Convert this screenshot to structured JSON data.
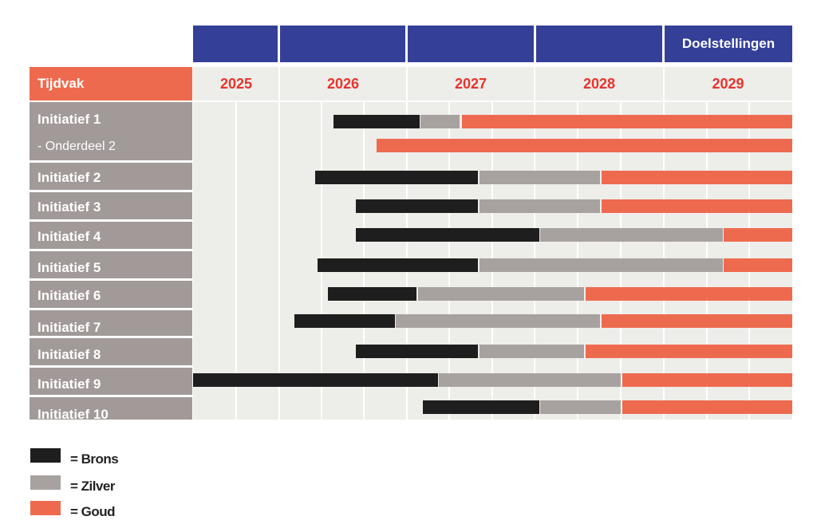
{
  "chart_data": {
    "type": "gantt",
    "header_title": "Doelstellingen",
    "period_label": "Tijdvak",
    "years": [
      "2025",
      "2026",
      "2027",
      "2028",
      "2029"
    ],
    "x_range": [
      2025.0,
      2029.9
    ],
    "colors": {
      "brons": "#1e1e1e",
      "zilver": "#a7a2a0",
      "goud": "#ee6a4e",
      "header_blue": "#343f98"
    },
    "legend": [
      {
        "key": "brons",
        "label": "= Brons"
      },
      {
        "key": "zilver",
        "label": "= Zilver"
      },
      {
        "key": "goud",
        "label": "= Goud"
      }
    ],
    "rows": [
      {
        "label": "Initiatief  1",
        "sublabel": "- Onderdeel 2",
        "segments": [
          {
            "level": "brons",
            "start": 2026.15,
            "end": 2026.85
          },
          {
            "level": "zilver",
            "start": 2026.86,
            "end": 2027.18
          },
          {
            "level": "goud",
            "start": 2027.2,
            "end": 2029.9
          }
        ],
        "sub_segments": [
          {
            "level": "goud",
            "start": 2026.5,
            "end": 2029.9
          }
        ]
      },
      {
        "label": "Initiatief  2",
        "segments": [
          {
            "level": "brons",
            "start": 2026.0,
            "end": 2027.33
          },
          {
            "level": "zilver",
            "start": 2027.34,
            "end": 2028.33
          },
          {
            "level": "goud",
            "start": 2028.34,
            "end": 2029.9
          }
        ]
      },
      {
        "label": "Initiatief  3",
        "segments": [
          {
            "level": "brons",
            "start": 2026.33,
            "end": 2027.33
          },
          {
            "level": "zilver",
            "start": 2027.34,
            "end": 2028.33
          },
          {
            "level": "goud",
            "start": 2028.34,
            "end": 2029.9
          }
        ]
      },
      {
        "label": "Initiatief  4",
        "segments": [
          {
            "level": "brons",
            "start": 2026.33,
            "end": 2027.83
          },
          {
            "level": "zilver",
            "start": 2027.84,
            "end": 2029.33
          },
          {
            "level": "goud",
            "start": 2029.34,
            "end": 2029.9
          }
        ]
      },
      {
        "label": "Initiatief  5",
        "segments": [
          {
            "level": "brons",
            "start": 2026.02,
            "end": 2027.33
          },
          {
            "level": "zilver",
            "start": 2027.34,
            "end": 2029.33
          },
          {
            "level": "goud",
            "start": 2029.34,
            "end": 2029.9
          }
        ]
      },
      {
        "label": "Initiatief  6",
        "segments": [
          {
            "level": "brons",
            "start": 2026.1,
            "end": 2026.83
          },
          {
            "level": "zilver",
            "start": 2026.84,
            "end": 2028.2
          },
          {
            "level": "goud",
            "start": 2028.21,
            "end": 2029.9
          }
        ]
      },
      {
        "label": "Initiatief  7",
        "segments": [
          {
            "level": "brons",
            "start": 2025.83,
            "end": 2026.65
          },
          {
            "level": "zilver",
            "start": 2026.66,
            "end": 2028.33
          },
          {
            "level": "goud",
            "start": 2028.34,
            "end": 2029.9
          }
        ]
      },
      {
        "label": "Initiatief  8",
        "segments": [
          {
            "level": "brons",
            "start": 2026.33,
            "end": 2027.33
          },
          {
            "level": "zilver",
            "start": 2027.34,
            "end": 2028.2
          },
          {
            "level": "goud",
            "start": 2028.21,
            "end": 2029.9
          }
        ]
      },
      {
        "label": "Initiatief  9",
        "segments": [
          {
            "level": "brons",
            "start": 2025.0,
            "end": 2027.0
          },
          {
            "level": "zilver",
            "start": 2027.01,
            "end": 2028.5
          },
          {
            "level": "goud",
            "start": 2028.51,
            "end": 2029.9
          }
        ]
      },
      {
        "label": "Initiatief 10",
        "segments": [
          {
            "level": "brons",
            "start": 2026.88,
            "end": 2027.83
          },
          {
            "level": "zilver",
            "start": 2027.84,
            "end": 2028.5
          },
          {
            "level": "goud",
            "start": 2028.51,
            "end": 2029.9
          }
        ]
      }
    ]
  }
}
